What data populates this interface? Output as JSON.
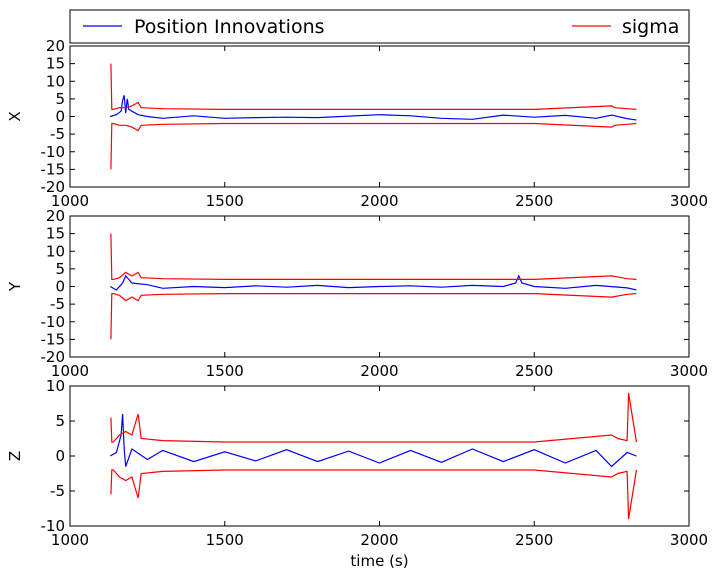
{
  "legend": [
    {
      "label": "Position Innovations",
      "color": "#0000ff"
    },
    {
      "label": "sigma",
      "color": "#ff0000"
    }
  ],
  "chart_data": [
    {
      "type": "line",
      "ylabel": "X",
      "xlabel": "",
      "xlim": [
        1000,
        3000
      ],
      "ylim": [
        -20,
        20
      ],
      "xticks": [
        1000,
        1500,
        2000,
        2500,
        3000
      ],
      "yticks": [
        -20,
        -15,
        -10,
        -5,
        0,
        5,
        10,
        15,
        20
      ],
      "grid": false,
      "legend_position": "top",
      "series": [
        {
          "name": "Position Innovations",
          "color": "#0000ff",
          "x": [
            1130,
            1150,
            1165,
            1170,
            1175,
            1180,
            1185,
            1190,
            1200,
            1220,
            1250,
            1300,
            1400,
            1500,
            1600,
            1700,
            1800,
            1900,
            2000,
            2100,
            2200,
            2300,
            2400,
            2500,
            2600,
            2700,
            2750,
            2800,
            2830
          ],
          "y": [
            0,
            0.5,
            1.5,
            4.5,
            6,
            1,
            5,
            2,
            1.5,
            0.5,
            0,
            -0.5,
            0.2,
            -0.5,
            -0.3,
            -0.2,
            -0.3,
            0.1,
            0.5,
            0.2,
            -0.5,
            -0.8,
            0.4,
            -0.2,
            0.3,
            -0.5,
            0.4,
            -0.6,
            -1
          ]
        },
        {
          "name": "sigma",
          "color": "#ff0000",
          "x": [
            1132,
            1135,
            1140,
            1160,
            1180,
            1200,
            1220,
            1230,
            1300,
            1500,
            2000,
            2500,
            2750,
            2760,
            2800,
            2830
          ],
          "y": [
            15,
            2,
            2,
            2.5,
            2.5,
            3,
            4,
            2.5,
            2.2,
            2,
            2,
            2,
            3,
            2.5,
            2.2,
            2
          ]
        }
      ]
    },
    {
      "type": "line",
      "ylabel": "Y",
      "xlabel": "",
      "xlim": [
        1000,
        3000
      ],
      "ylim": [
        -20,
        20
      ],
      "xticks": [
        1000,
        1500,
        2000,
        2500,
        3000
      ],
      "yticks": [
        -20,
        -15,
        -10,
        -5,
        0,
        5,
        10,
        15,
        20
      ],
      "grid": false,
      "series": [
        {
          "name": "Position Innovations",
          "color": "#0000ff",
          "x": [
            1130,
            1150,
            1170,
            1180,
            1190,
            1200,
            1250,
            1300,
            1400,
            1500,
            1600,
            1700,
            1800,
            1900,
            2000,
            2100,
            2200,
            2300,
            2400,
            2440,
            2450,
            2460,
            2500,
            2600,
            2700,
            2800,
            2830
          ],
          "y": [
            0,
            -1,
            1,
            3,
            2,
            1,
            0.5,
            -0.5,
            0,
            -0.3,
            0.2,
            -0.2,
            0.3,
            -0.3,
            0,
            0.2,
            -0.2,
            0.3,
            0,
            1,
            3,
            1,
            0,
            -0.5,
            0.3,
            -0.4,
            -1
          ]
        },
        {
          "name": "sigma",
          "color": "#ff0000",
          "x": [
            1132,
            1135,
            1140,
            1160,
            1180,
            1200,
            1220,
            1230,
            1300,
            1500,
            2000,
            2500,
            2750,
            2800,
            2830
          ],
          "y": [
            15,
            2,
            2,
            2.5,
            4,
            3,
            4,
            2.5,
            2.2,
            2,
            2,
            2,
            3,
            2.2,
            2
          ]
        }
      ]
    },
    {
      "type": "line",
      "ylabel": "Z",
      "xlabel": "time (s)",
      "xlim": [
        1000,
        3000
      ],
      "ylim": [
        -10,
        10
      ],
      "xticks": [
        1000,
        1500,
        2000,
        2500,
        3000
      ],
      "yticks": [
        -10,
        -5,
        0,
        5,
        10
      ],
      "grid": false,
      "series": [
        {
          "name": "Position Innovations",
          "color": "#0000ff",
          "x": [
            1130,
            1150,
            1165,
            1170,
            1175,
            1180,
            1200,
            1250,
            1300,
            1400,
            1500,
            1600,
            1700,
            1800,
            1900,
            2000,
            2100,
            2200,
            2300,
            2400,
            2500,
            2600,
            2700,
            2750,
            2800,
            2830
          ],
          "y": [
            0,
            0.5,
            3,
            6,
            1,
            -1.5,
            1,
            -0.5,
            0.8,
            -0.8,
            0.6,
            -0.7,
            0.9,
            -0.8,
            0.7,
            -1,
            0.8,
            -0.9,
            1,
            -0.8,
            0.9,
            -1,
            0.8,
            -1.5,
            0.5,
            0
          ]
        },
        {
          "name": "sigma",
          "color": "#ff0000",
          "x": [
            1132,
            1135,
            1140,
            1160,
            1180,
            1200,
            1220,
            1230,
            1300,
            1500,
            2000,
            2500,
            2750,
            2770,
            2800,
            2805,
            2830
          ],
          "y": [
            5.5,
            2,
            2,
            3,
            3.5,
            3,
            6,
            2.5,
            2.2,
            2,
            2,
            2,
            3,
            2.5,
            2.2,
            9,
            2
          ]
        }
      ]
    }
  ]
}
